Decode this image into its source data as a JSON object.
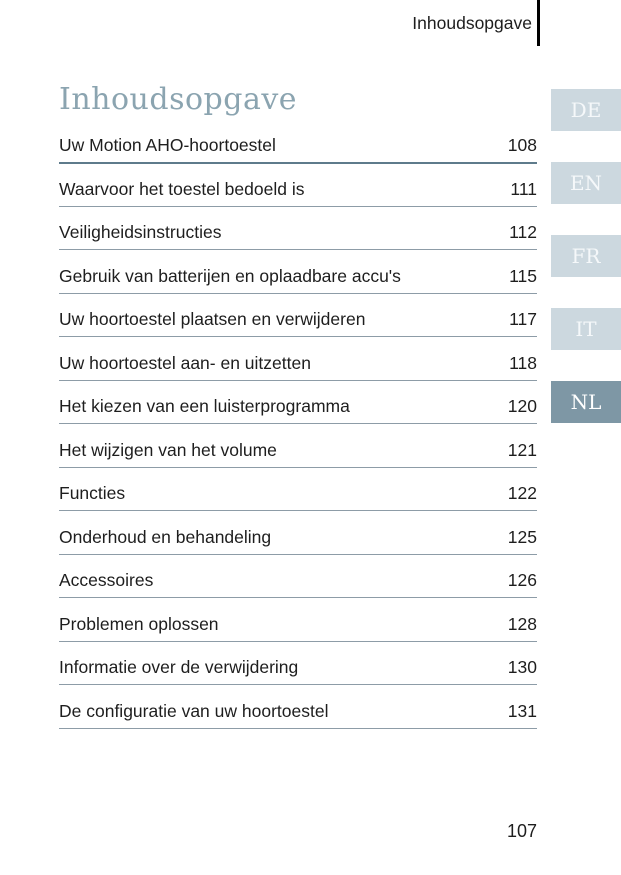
{
  "header": {
    "title": "Inhoudsopgave"
  },
  "title": "Inhoudsopgave",
  "toc": {
    "entries": [
      {
        "title": "Uw Motion AHO-hoortoestel",
        "page": "108"
      },
      {
        "title": "Waarvoor het toestel bedoeld is",
        "page": "111"
      },
      {
        "title": "Veiligheidsinstructies",
        "page": "112"
      },
      {
        "title": "Gebruik van batterijen en oplaadbare accu's",
        "page": "115"
      },
      {
        "title": "Uw hoortoestel plaatsen en verwijderen",
        "page": "117"
      },
      {
        "title": "Uw hoortoestel aan- en uitzetten",
        "page": "118"
      },
      {
        "title": "Het kiezen van een luisterprogramma",
        "page": "120"
      },
      {
        "title": "Het wijzigen van het volume",
        "page": "121"
      },
      {
        "title": "Functies",
        "page": "122"
      },
      {
        "title": "Onderhoud en behandeling",
        "page": "125"
      },
      {
        "title": "Accessoires",
        "page": "126"
      },
      {
        "title": "Problemen oplossen",
        "page": "128"
      },
      {
        "title": "Informatie over de verwijdering",
        "page": "130"
      },
      {
        "title": "De configuratie van uw hoortoestel",
        "page": "131"
      }
    ]
  },
  "language_tabs": [
    {
      "label": "DE",
      "active": false
    },
    {
      "label": "EN",
      "active": false
    },
    {
      "label": "FR",
      "active": false
    },
    {
      "label": "IT",
      "active": false
    },
    {
      "label": "NL",
      "active": true
    }
  ],
  "footer": {
    "page_number": "107"
  },
  "colors": {
    "title": "#8ba4b0",
    "text": "#1e1e1e",
    "rule": "#8d9ca7",
    "rule_first": "#5e7b8b",
    "tab_inactive_bg": "#ccd8df",
    "tab_active_bg": "#7e97a5",
    "tab_text": "#f5f8fa",
    "header_bar": "#000000"
  }
}
